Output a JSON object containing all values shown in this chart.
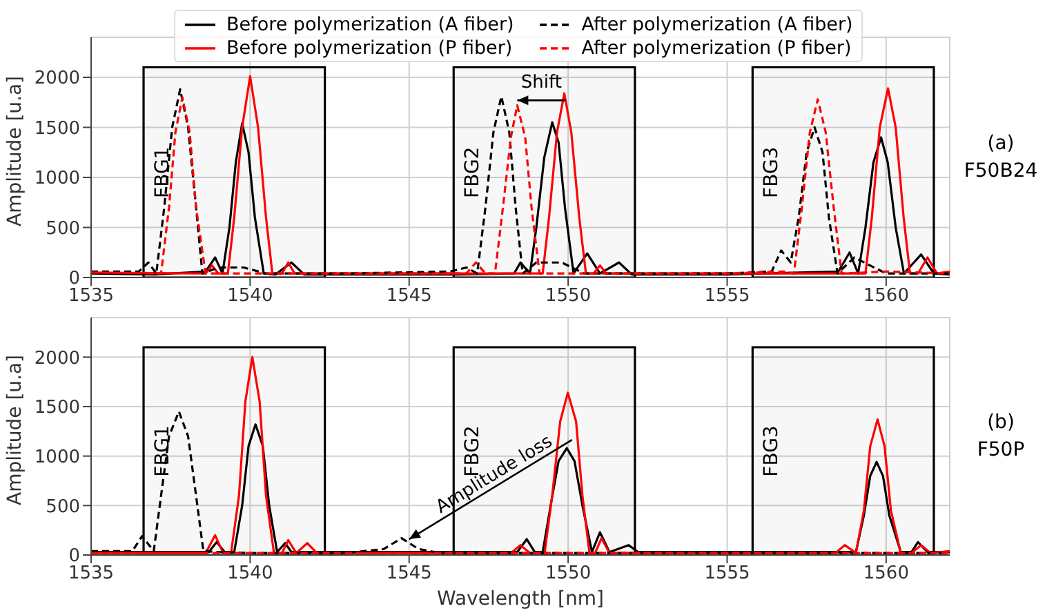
{
  "chart_data": [
    {
      "type": "line",
      "ylabel": "Amplitude [u.a]",
      "xlim": [
        1535,
        1562
      ],
      "xticks": [
        1535,
        1540,
        1545,
        1550,
        1555,
        1560
      ],
      "ylim": [
        0,
        2400
      ],
      "yticks": [
        0,
        500,
        1000,
        1500,
        2000
      ],
      "grid": true,
      "legend": "top",
      "bands": [
        {
          "axis": "x",
          "from": 1536.65,
          "to": 1542.35,
          "label": "FBG1",
          "color": "#000000"
        },
        {
          "axis": "x",
          "from": 1546.4,
          "to": 1552.1,
          "label": "FBG2",
          "color": "#000000"
        },
        {
          "axis": "x",
          "from": 1555.8,
          "to": 1561.5,
          "label": "FBG3",
          "color": "#000000"
        }
      ],
      "annotations": [
        {
          "text": "Shift",
          "x": 1548.4,
          "y": 1770
        },
        "(a)",
        "F50B24"
      ],
      "series": [
        {
          "name": "Before polymerization (A fiber)",
          "color": "#000000",
          "line_style": "solid",
          "x": [
            1535,
            1537,
            1538.6,
            1538.9,
            1539.13,
            1539.35,
            1539.55,
            1539.75,
            1539.95,
            1540.15,
            1540.43,
            1540.8,
            1541.3,
            1541.7,
            1544,
            1546.5,
            1548.3,
            1548.5,
            1548.8,
            1549.0,
            1549.25,
            1549.5,
            1549.7,
            1549.9,
            1550.17,
            1550.6,
            1551.0,
            1551.6,
            1552,
            1555,
            1558.5,
            1558.85,
            1559.12,
            1559.35,
            1559.6,
            1559.84,
            1560.05,
            1560.3,
            1560.56,
            1561.1,
            1561.5,
            1562
          ],
          "values": [
            40,
            30,
            60,
            200,
            40,
            500,
            1150,
            1540,
            1250,
            600,
            40,
            30,
            150,
            30,
            30,
            30,
            40,
            150,
            40,
            500,
            1200,
            1550,
            1350,
            700,
            40,
            240,
            40,
            150,
            30,
            30,
            60,
            250,
            40,
            500,
            1150,
            1400,
            1150,
            500,
            40,
            230,
            40,
            30
          ]
        },
        {
          "name": "Before polymerization (P fiber)",
          "color": "#ff0000",
          "line_style": "solid",
          "x": [
            1535,
            1538.6,
            1538.8,
            1539.0,
            1539.3,
            1539.5,
            1539.75,
            1540.0,
            1540.25,
            1540.5,
            1540.7,
            1541.0,
            1541.2,
            1541.4,
            1545,
            1548.9,
            1549.2,
            1549.4,
            1549.65,
            1549.88,
            1550.1,
            1550.35,
            1550.56,
            1550.8,
            1551.0,
            1551.2,
            1555,
            1559.1,
            1559.35,
            1559.55,
            1559.8,
            1560.06,
            1560.3,
            1560.55,
            1560.75,
            1561.0,
            1561.3,
            1561.6,
            1562
          ],
          "values": [
            50,
            40,
            120,
            40,
            40,
            600,
            1500,
            2010,
            1500,
            600,
            40,
            40,
            150,
            40,
            40,
            40,
            40,
            600,
            1450,
            1840,
            1450,
            600,
            40,
            40,
            120,
            40,
            40,
            40,
            40,
            600,
            1500,
            1890,
            1500,
            600,
            40,
            40,
            200,
            40,
            60
          ]
        },
        {
          "name": "After polymerization (A fiber)",
          "color": "#000000",
          "line_style": "dashed",
          "x": [
            1535,
            1536.5,
            1536.8,
            1537.05,
            1537.3,
            1537.55,
            1537.8,
            1538.05,
            1538.3,
            1538.5,
            1539,
            1539.8,
            1540.5,
            1543,
            1546.3,
            1546.8,
            1547.14,
            1547.4,
            1547.65,
            1547.9,
            1548.15,
            1548.35,
            1548.57,
            1549,
            1549.8,
            1550.5,
            1552,
            1555,
            1556.4,
            1556.7,
            1557.0,
            1557.25,
            1557.5,
            1557.75,
            1558.0,
            1558.2,
            1558.47,
            1559,
            1560,
            1562
          ],
          "values": [
            60,
            60,
            150,
            40,
            700,
            1500,
            1880,
            1500,
            700,
            40,
            100,
            100,
            40,
            40,
            60,
            100,
            40,
            700,
            1450,
            1810,
            1450,
            700,
            40,
            150,
            150,
            40,
            40,
            40,
            60,
            270,
            150,
            600,
            1250,
            1500,
            1250,
            600,
            40,
            200,
            40,
            40
          ]
        },
        {
          "name": "After polymerization (P fiber)",
          "color": "#ff0000",
          "line_style": "dashed",
          "x": [
            1535,
            1537.2,
            1537.45,
            1537.65,
            1537.87,
            1538.1,
            1538.3,
            1538.6,
            1540,
            1546.8,
            1547.1,
            1547.4,
            1547.7,
            1547.95,
            1548.2,
            1548.4,
            1548.65,
            1548.85,
            1549.1,
            1550,
            1555,
            1556.8,
            1557.1,
            1557.35,
            1557.6,
            1557.85,
            1558.1,
            1558.35,
            1558.6,
            1560,
            1562
          ],
          "values": [
            50,
            40,
            700,
            1450,
            1800,
            1450,
            700,
            40,
            40,
            40,
            150,
            40,
            40,
            700,
            1400,
            1720,
            1400,
            700,
            40,
            40,
            40,
            60,
            40,
            700,
            1450,
            1780,
            1450,
            700,
            40,
            60,
            40
          ]
        }
      ]
    },
    {
      "type": "line",
      "xlabel": "Wavelength [nm]",
      "ylabel": "Amplitude [u.a]",
      "xlim": [
        1535,
        1562
      ],
      "xticks": [
        1535,
        1540,
        1545,
        1550,
        1555,
        1560
      ],
      "ylim": [
        0,
        2400
      ],
      "yticks": [
        0,
        500,
        1000,
        1500,
        2000
      ],
      "grid": true,
      "bands": [
        {
          "axis": "x",
          "from": 1536.65,
          "to": 1542.35,
          "label": "FBG1",
          "color": "#000000"
        },
        {
          "axis": "x",
          "from": 1546.4,
          "to": 1552.1,
          "label": "FBG2",
          "color": "#000000"
        },
        {
          "axis": "x",
          "from": 1555.8,
          "to": 1561.5,
          "label": "FBG3",
          "color": "#000000"
        }
      ],
      "annotations": [
        {
          "text": "Amplitude loss",
          "x": 1545,
          "y": 160
        },
        "(b)",
        "F50P"
      ],
      "series": [
        {
          "color": "#000000",
          "line_style": "solid",
          "x": [
            1535,
            1538.7,
            1538.95,
            1539.2,
            1539.5,
            1539.75,
            1539.95,
            1540.17,
            1540.4,
            1540.6,
            1540.85,
            1541.1,
            1541.3,
            1541.6,
            1545,
            1548.4,
            1548.7,
            1548.95,
            1549.2,
            1549.45,
            1549.7,
            1549.96,
            1550.2,
            1550.45,
            1550.75,
            1551.0,
            1551.3,
            1551.9,
            1552.2,
            1555,
            1558.7,
            1559.05,
            1559.3,
            1559.5,
            1559.7,
            1559.9,
            1560.1,
            1560.46,
            1560.8,
            1561.0,
            1561.3,
            1562
          ],
          "values": [
            30,
            30,
            130,
            30,
            30,
            500,
            1100,
            1320,
            1100,
            500,
            30,
            120,
            30,
            30,
            30,
            30,
            160,
            30,
            30,
            500,
            950,
            1080,
            950,
            500,
            30,
            230,
            30,
            100,
            30,
            30,
            30,
            30,
            400,
            800,
            940,
            800,
            400,
            30,
            30,
            130,
            30,
            30
          ]
        },
        {
          "color": "#ff0000",
          "line_style": "solid",
          "x": [
            1535,
            1538.6,
            1538.9,
            1539.15,
            1539.4,
            1539.65,
            1539.85,
            1540.07,
            1540.3,
            1540.5,
            1540.75,
            1541.0,
            1541.2,
            1541.45,
            1541.8,
            1542.1,
            1545,
            1548.2,
            1548.5,
            1548.8,
            1549.26,
            1549.5,
            1549.75,
            1549.99,
            1550.25,
            1550.45,
            1550.67,
            1550.85,
            1551.05,
            1551.3,
            1555,
            1558.4,
            1558.7,
            1559.05,
            1559.3,
            1559.5,
            1559.73,
            1559.95,
            1560.15,
            1560.46,
            1560.8,
            1561.1,
            1561.4,
            1562
          ],
          "values": [
            20,
            20,
            200,
            20,
            20,
            600,
            1550,
            2000,
            1550,
            600,
            20,
            20,
            150,
            20,
            120,
            20,
            20,
            20,
            100,
            20,
            20,
            600,
            1350,
            1640,
            1350,
            600,
            20,
            20,
            170,
            20,
            20,
            20,
            100,
            20,
            450,
            1100,
            1370,
            1100,
            450,
            20,
            20,
            100,
            20,
            40
          ]
        },
        {
          "color": "#000000",
          "line_style": "dashed",
          "x": [
            1535,
            1536.3,
            1536.6,
            1536.97,
            1537.2,
            1537.45,
            1537.76,
            1538.05,
            1538.3,
            1538.53,
            1539,
            1540,
            1543,
            1544.2,
            1544.76,
            1545.3,
            1546,
            1550,
            1555,
            1562
          ],
          "values": [
            40,
            40,
            190,
            40,
            600,
            1200,
            1450,
            1200,
            600,
            40,
            30,
            20,
            20,
            60,
            170,
            60,
            20,
            20,
            20,
            20
          ]
        },
        {
          "color": "#ff0000",
          "line_style": "dashed",
          "x": [
            1535,
            1545,
            1555,
            1562
          ],
          "values": [
            20,
            20,
            20,
            20
          ]
        }
      ]
    }
  ]
}
